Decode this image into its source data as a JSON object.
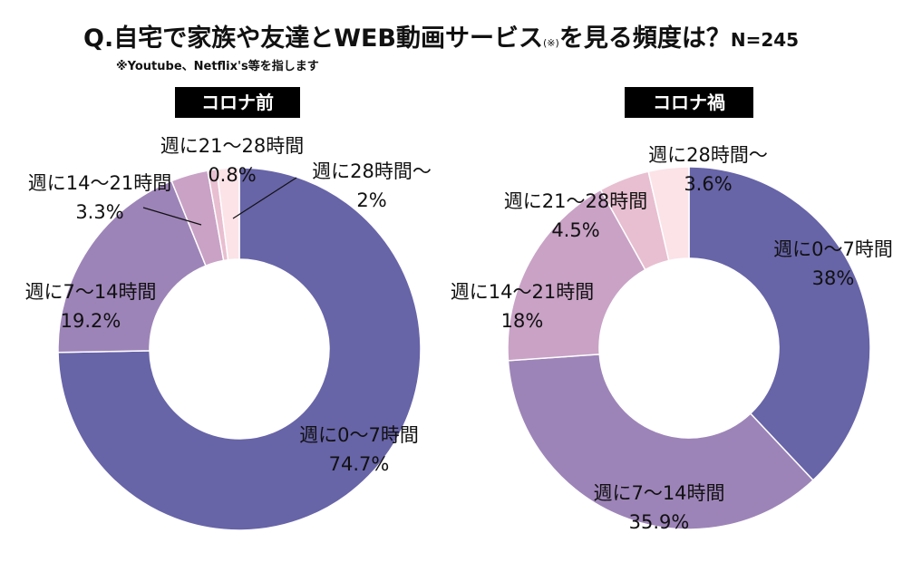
{
  "title": {
    "main": "Q.自宅で家族や友達とWEB動画サービス",
    "note_mark": "(※)",
    "tail": "を見る頻度は？",
    "n": "N=245"
  },
  "subnote": "※Youtube、Netflix's等を指します",
  "colors": {
    "slice1": "#6764a8",
    "slice2": "#9d84b8",
    "slice3": "#c9a2c6",
    "slice4": "#e8bfd0",
    "slice5": "#fbe3e8"
  },
  "chart_data": [
    {
      "type": "donut",
      "title": "コロナ前",
      "categories": [
        "週に0〜7時間",
        "週に7〜14時間",
        "週に14〜21時間",
        "週に21〜28時間",
        "週に28時間〜"
      ],
      "values": [
        74.7,
        19.2,
        3.3,
        0.8,
        2
      ],
      "value_labels": [
        "74.7%",
        "19.2%",
        "3.3%",
        "0.8%",
        "2%"
      ]
    },
    {
      "type": "donut",
      "title": "コロナ禍",
      "categories": [
        "週に0〜7時間",
        "週に7〜14時間",
        "週に14〜21時間",
        "週に21〜28時間",
        "週に28時間〜"
      ],
      "values": [
        38,
        35.9,
        18,
        4.5,
        3.6
      ],
      "value_labels": [
        "38%",
        "35.9%",
        "18%",
        "4.5%",
        "3.6%"
      ]
    }
  ]
}
